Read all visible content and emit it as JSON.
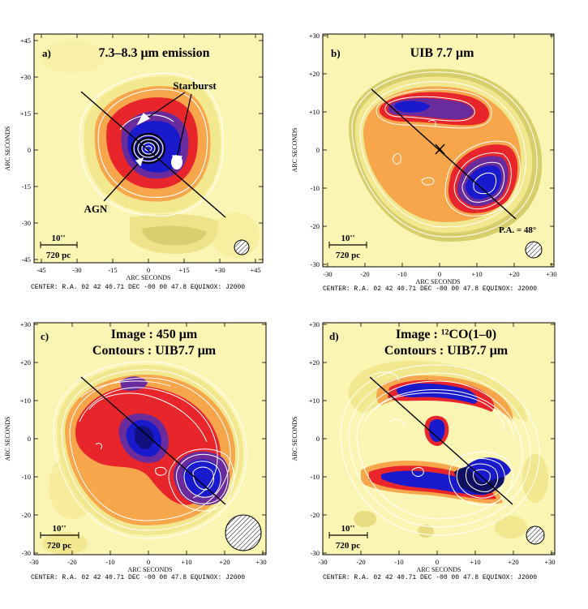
{
  "panels": [
    {
      "id": "a",
      "letter": "a)",
      "title_lines": [
        "7.3–8.3 μm  emission"
      ],
      "annotations": {
        "starburst": "Starburst",
        "agn": "AGN"
      },
      "x_ticks": [
        "-45",
        "-30",
        "-15",
        "0",
        "+15",
        "+30",
        "+45"
      ],
      "y_ticks": [
        "+45",
        "+30",
        "+15",
        "0",
        "-15",
        "-30",
        "-45"
      ],
      "scale_arcsec": "10''",
      "scale_pc": "720 pc",
      "x_label": "ARC SECONDS",
      "y_label": "ARC SECONDS",
      "center": "CENTER: R.A. 02 42 40.71 DEC -00 00 47.8  EQUINOX: J2000"
    },
    {
      "id": "b",
      "letter": "b)",
      "title_lines": [
        "UIB  7.7 μm"
      ],
      "annotations": {
        "pa": "P.A. = 48°"
      },
      "x_ticks": [
        "-30",
        "-20",
        "-10",
        "0",
        "+10",
        "+20",
        "+30"
      ],
      "y_ticks": [
        "+30",
        "+20",
        "+10",
        "0",
        "-10",
        "-20",
        "-30"
      ],
      "scale_arcsec": "10''",
      "scale_pc": "720 pc",
      "x_label": "ARC SECONDS",
      "y_label": "ARC SECONDS",
      "center": "CENTER: R.A. 02 42 40.71 DEC -00 00 47.8  EQUINOX: J2000"
    },
    {
      "id": "c",
      "letter": "c)",
      "title_lines": [
        "Image : 450 μm",
        "Contours : UIB7.7 μm"
      ],
      "annotations": {},
      "x_ticks": [
        "-30",
        "-20",
        "-10",
        "0",
        "+10",
        "+20",
        "+30"
      ],
      "y_ticks": [
        "+30",
        "+20",
        "+10",
        "0",
        "-10",
        "-20",
        "-30"
      ],
      "scale_arcsec": "10''",
      "scale_pc": "720 pc",
      "x_label": "ARC SECONDS",
      "y_label": "ARC SECONDS",
      "center": "CENTER: R.A. 02 42 40.71 DEC -00 00 47.8  EQUINOX: J2000"
    },
    {
      "id": "d",
      "letter": "d)",
      "title_lines": [
        "Image : ¹²CO(1–0)",
        "Contours : UIB7.7 μm"
      ],
      "annotations": {},
      "x_ticks": [
        "-30",
        "-20",
        "-10",
        "0",
        "+10",
        "+20",
        "+30"
      ],
      "y_ticks": [
        "+30",
        "+20",
        "+10",
        "0",
        "-10",
        "-20",
        "-30"
      ],
      "scale_arcsec": "10''",
      "scale_pc": "720 pc",
      "x_label": "ARC SECONDS",
      "y_label": "ARC SECONDS",
      "center": "CENTER: R.A. 02 42 40.71 DEC -00 00 47.8  EQUINOX: J2000"
    }
  ],
  "colors": {
    "bg_yellow": "#fbf5b4",
    "pale": "#f2e890",
    "olive": "#d6cf6c",
    "orange": "#f7a64b",
    "red": "#e8252b",
    "purple": "#6a2c9c",
    "blue": "#1a1acd",
    "black": "#000000"
  }
}
